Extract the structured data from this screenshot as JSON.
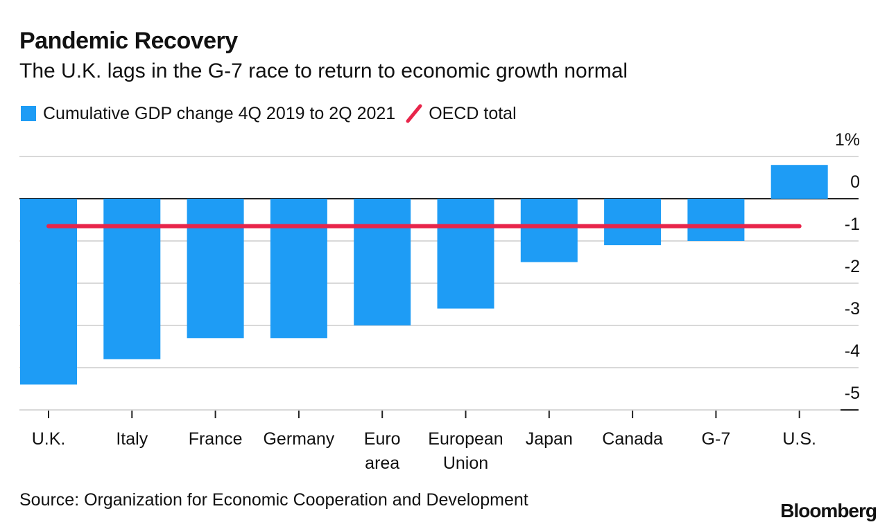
{
  "title": "Pandemic Recovery",
  "subtitle": "The U.K. lags in the G-7 race to return to economic growth normal",
  "legend": {
    "bars_label": "Cumulative GDP change 4Q 2019 to 2Q 2021",
    "line_label": "OECD total"
  },
  "source": "Source: Organization for Economic Cooperation and Development",
  "logo": "Bloomberg",
  "colors": {
    "bar": "#1e9cf5",
    "line": "#e8254a",
    "grid": "#d9d9d9"
  },
  "chart_data": {
    "type": "bar",
    "categories": [
      "U.K.",
      "Italy",
      "France",
      "Germany",
      "Euro area",
      "European Union",
      "Japan",
      "Canada",
      "G-7",
      "U.S."
    ],
    "category_lines": [
      [
        "U.K."
      ],
      [
        "Italy"
      ],
      [
        "France"
      ],
      [
        "Germany"
      ],
      [
        "Euro",
        "area"
      ],
      [
        "European",
        "Union"
      ],
      [
        "Japan"
      ],
      [
        "Canada"
      ],
      [
        "G-7"
      ],
      [
        "U.S."
      ]
    ],
    "series": [
      {
        "name": "Cumulative GDP change 4Q 2019 to 2Q 2021",
        "values": [
          -4.4,
          -3.8,
          -3.3,
          -3.3,
          -3.0,
          -2.6,
          -1.5,
          -1.1,
          -1.0,
          0.8
        ]
      }
    ],
    "reference_line": {
      "name": "OECD total",
      "value": -0.65
    },
    "ylim": [
      -5,
      1
    ],
    "yticks": [
      1,
      0,
      -1,
      -2,
      -3,
      -4,
      -5
    ],
    "ytick_labels": [
      "1%",
      "0",
      "-1",
      "-2",
      "-3",
      "-4",
      "-5"
    ],
    "grid": true,
    "legend_position": "top-left"
  }
}
